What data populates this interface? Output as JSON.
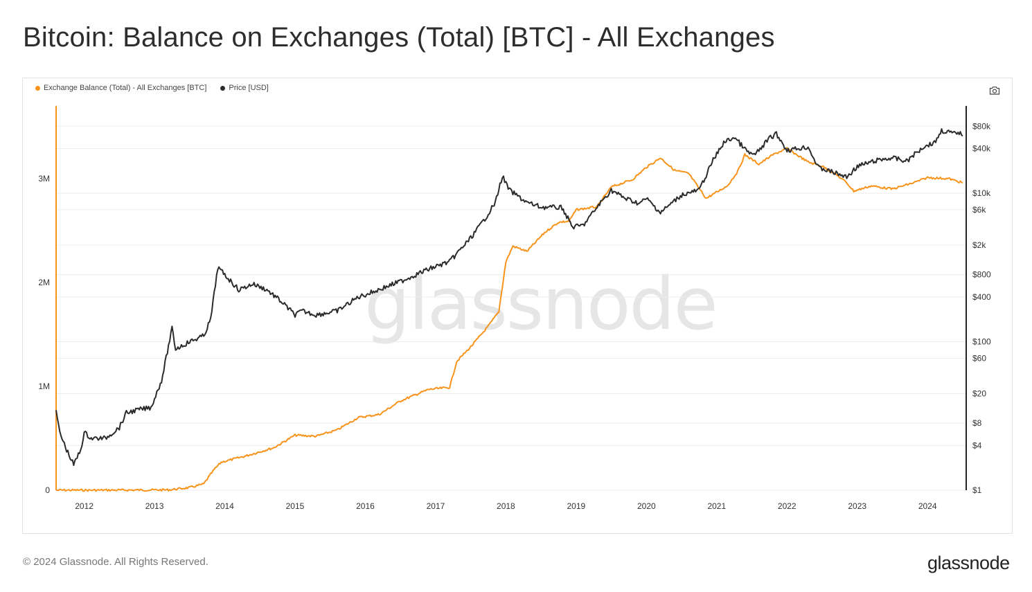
{
  "title": "Bitcoin: Balance on Exchanges (Total) [BTC] - All Exchanges",
  "watermark": "glassnode",
  "footer": "© 2024 Glassnode. All Rights Reserved.",
  "brand": "glassnode",
  "colors": {
    "balance": "#f7931a",
    "price": "#2b2b2b",
    "grid": "#ececec"
  },
  "icons": {
    "camera": "camera-icon"
  },
  "chart_data": {
    "type": "line",
    "legend_placement": "top-left",
    "grid": true,
    "x_ticks": [
      "2012",
      "2013",
      "2014",
      "2015",
      "2016",
      "2017",
      "2018",
      "2019",
      "2020",
      "2021",
      "2022",
      "2023",
      "2024"
    ],
    "y_left": {
      "range": [
        0,
        3700000
      ],
      "ticks": [
        {
          "v": 0,
          "label": "0"
        },
        {
          "v": 1000000,
          "label": "1M"
        },
        {
          "v": 2000000,
          "label": "2M"
        },
        {
          "v": 3000000,
          "label": "3M"
        }
      ]
    },
    "y_right": {
      "scale": "log",
      "range": [
        1,
        150000
      ],
      "ticks": [
        {
          "v": 1,
          "label": "$1"
        },
        {
          "v": 4,
          "label": "$4"
        },
        {
          "v": 8,
          "label": "$8"
        },
        {
          "v": 20,
          "label": "$20"
        },
        {
          "v": 60,
          "label": "$60"
        },
        {
          "v": 100,
          "label": "$100"
        },
        {
          "v": 400,
          "label": "$400"
        },
        {
          "v": 800,
          "label": "$800"
        },
        {
          "v": 2000,
          "label": "$2k"
        },
        {
          "v": 6000,
          "label": "$6k"
        },
        {
          "v": 10000,
          "label": "$10k"
        },
        {
          "v": 40000,
          "label": "$40k"
        },
        {
          "v": 80000,
          "label": "$80k"
        }
      ]
    },
    "series": [
      {
        "name": "Exchange Balance (Total) - All Exchanges [BTC]",
        "axis": "left",
        "points": [
          [
            2011.6,
            0
          ],
          [
            2012.5,
            1000
          ],
          [
            2013.2,
            3000
          ],
          [
            2013.5,
            25000
          ],
          [
            2013.7,
            60000
          ],
          [
            2013.85,
            200000
          ],
          [
            2013.95,
            270000
          ],
          [
            2014.3,
            330000
          ],
          [
            2014.7,
            410000
          ],
          [
            2015.0,
            530000
          ],
          [
            2015.3,
            520000
          ],
          [
            2015.6,
            580000
          ],
          [
            2015.9,
            700000
          ],
          [
            2016.2,
            730000
          ],
          [
            2016.5,
            860000
          ],
          [
            2016.9,
            970000
          ],
          [
            2017.2,
            990000
          ],
          [
            2017.3,
            1240000
          ],
          [
            2017.5,
            1380000
          ],
          [
            2017.75,
            1580000
          ],
          [
            2017.9,
            1720000
          ],
          [
            2018.0,
            2200000
          ],
          [
            2018.1,
            2350000
          ],
          [
            2018.3,
            2300000
          ],
          [
            2018.55,
            2480000
          ],
          [
            2018.75,
            2580000
          ],
          [
            2018.9,
            2590000
          ],
          [
            2019.0,
            2700000
          ],
          [
            2019.3,
            2730000
          ],
          [
            2019.5,
            2920000
          ],
          [
            2019.8,
            2990000
          ],
          [
            2020.0,
            3110000
          ],
          [
            2020.2,
            3200000
          ],
          [
            2020.4,
            3080000
          ],
          [
            2020.6,
            3050000
          ],
          [
            2020.85,
            2810000
          ],
          [
            2021.0,
            2870000
          ],
          [
            2021.15,
            2930000
          ],
          [
            2021.3,
            3070000
          ],
          [
            2021.4,
            3230000
          ],
          [
            2021.6,
            3140000
          ],
          [
            2021.8,
            3230000
          ],
          [
            2022.0,
            3290000
          ],
          [
            2022.3,
            3160000
          ],
          [
            2022.5,
            3120000
          ],
          [
            2022.7,
            3040000
          ],
          [
            2022.85,
            2960000
          ],
          [
            2022.95,
            2880000
          ],
          [
            2023.2,
            2930000
          ],
          [
            2023.5,
            2900000
          ],
          [
            2023.8,
            2960000
          ],
          [
            2024.0,
            3010000
          ],
          [
            2024.3,
            3000000
          ],
          [
            2024.5,
            2960000
          ]
        ]
      },
      {
        "name": "Price [USD]",
        "axis": "right",
        "points": [
          [
            2011.6,
            12
          ],
          [
            2011.65,
            6
          ],
          [
            2011.75,
            3.5
          ],
          [
            2011.85,
            2.2
          ],
          [
            2011.95,
            3.5
          ],
          [
            2012.0,
            6
          ],
          [
            2012.1,
            5
          ],
          [
            2012.3,
            5
          ],
          [
            2012.5,
            7
          ],
          [
            2012.6,
            11
          ],
          [
            2012.75,
            12
          ],
          [
            2012.95,
            13
          ],
          [
            2013.1,
            30
          ],
          [
            2013.25,
            150
          ],
          [
            2013.3,
            80
          ],
          [
            2013.5,
            100
          ],
          [
            2013.7,
            120
          ],
          [
            2013.8,
            200
          ],
          [
            2013.9,
            1000
          ],
          [
            2014.0,
            800
          ],
          [
            2014.2,
            500
          ],
          [
            2014.4,
            600
          ],
          [
            2014.6,
            500
          ],
          [
            2014.8,
            350
          ],
          [
            2015.0,
            230
          ],
          [
            2015.1,
            260
          ],
          [
            2015.3,
            230
          ],
          [
            2015.6,
            260
          ],
          [
            2015.9,
            400
          ],
          [
            2016.0,
            430
          ],
          [
            2016.5,
            650
          ],
          [
            2016.9,
            950
          ],
          [
            2017.2,
            1200
          ],
          [
            2017.5,
            2500
          ],
          [
            2017.7,
            4500
          ],
          [
            2017.85,
            7500
          ],
          [
            2017.95,
            17000
          ],
          [
            2018.05,
            11000
          ],
          [
            2018.3,
            7500
          ],
          [
            2018.5,
            6500
          ],
          [
            2018.8,
            6400
          ],
          [
            2018.95,
            3500
          ],
          [
            2019.1,
            3700
          ],
          [
            2019.35,
            7500
          ],
          [
            2019.5,
            11000
          ],
          [
            2019.7,
            8500
          ],
          [
            2019.9,
            7300
          ],
          [
            2020.0,
            8500
          ],
          [
            2020.2,
            5500
          ],
          [
            2020.5,
            9500
          ],
          [
            2020.75,
            11000
          ],
          [
            2020.95,
            28000
          ],
          [
            2021.1,
            48000
          ],
          [
            2021.25,
            57000
          ],
          [
            2021.45,
            35000
          ],
          [
            2021.55,
            33000
          ],
          [
            2021.75,
            55000
          ],
          [
            2021.85,
            63000
          ],
          [
            2022.0,
            38000
          ],
          [
            2022.3,
            42000
          ],
          [
            2022.45,
            22000
          ],
          [
            2022.6,
            20000
          ],
          [
            2022.85,
            16500
          ],
          [
            2023.0,
            23000
          ],
          [
            2023.3,
            28000
          ],
          [
            2023.5,
            30000
          ],
          [
            2023.7,
            27000
          ],
          [
            2023.95,
            43000
          ],
          [
            2024.1,
            48000
          ],
          [
            2024.2,
            70000
          ],
          [
            2024.4,
            63000
          ],
          [
            2024.45,
            66000
          ],
          [
            2024.5,
            59000
          ]
        ]
      }
    ]
  }
}
